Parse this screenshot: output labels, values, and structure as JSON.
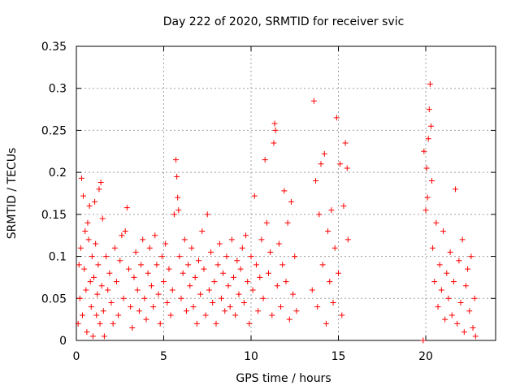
{
  "chart_data": {
    "type": "scatter",
    "title": "Day 222 of 2020, SRMTID for receiver svic",
    "xlabel": "GPS time / hours",
    "ylabel": "SRMTID / TECUs",
    "xlim": [
      0,
      24
    ],
    "ylim": [
      0,
      0.35
    ],
    "xticks": [
      0,
      5,
      10,
      15,
      20
    ],
    "xtick_labels": [
      "0",
      "5",
      "10",
      "15",
      "20"
    ],
    "yticks": [
      0,
      0.05,
      0.1,
      0.15,
      0.2,
      0.25,
      0.3,
      0.35
    ],
    "ytick_labels": [
      "0",
      "0.05",
      "0.1",
      "0.15",
      "0.2",
      "0.25",
      "0.3",
      "0.35"
    ],
    "grid": true,
    "marker": "+",
    "color": "#ff0000",
    "series": [
      {
        "points": [
          [
            0.1,
            0.02
          ],
          [
            0.15,
            0.09
          ],
          [
            0.2,
            0.05
          ],
          [
            0.25,
            0.11
          ],
          [
            0.3,
            0.193
          ],
          [
            0.35,
            0.03
          ],
          [
            0.4,
            0.172
          ],
          [
            0.45,
            0.085
          ],
          [
            0.5,
            0.13
          ],
          [
            0.55,
            0.06
          ],
          [
            0.6,
            0.01
          ],
          [
            0.65,
            0.14
          ],
          [
            0.7,
            0.12
          ],
          [
            0.75,
            0.16
          ],
          [
            0.8,
            0.07
          ],
          [
            0.85,
            0.04
          ],
          [
            0.9,
            0.1
          ],
          [
            0.95,
            0.005
          ],
          [
            1.0,
            0.075
          ],
          [
            1.05,
            0.165
          ],
          [
            1.1,
            0.115
          ],
          [
            1.15,
            0.03
          ],
          [
            1.2,
            0.055
          ],
          [
            1.25,
            0.09
          ],
          [
            1.3,
            0.18
          ],
          [
            1.35,
            0.02
          ],
          [
            1.4,
            0.188
          ],
          [
            1.45,
            0.065
          ],
          [
            1.5,
            0.145
          ],
          [
            1.55,
            0.035
          ],
          [
            1.6,
            0.005
          ],
          [
            1.7,
            0.1
          ],
          [
            1.8,
            0.06
          ],
          [
            1.9,
            0.08
          ],
          [
            2.0,
            0.045
          ],
          [
            2.1,
            0.02
          ],
          [
            2.2,
            0.11
          ],
          [
            2.3,
            0.07
          ],
          [
            2.4,
            0.03
          ],
          [
            2.5,
            0.095
          ],
          [
            2.6,
            0.125
          ],
          [
            2.7,
            0.05
          ],
          [
            2.8,
            0.13
          ],
          [
            2.9,
            0.158
          ],
          [
            3.0,
            0.085
          ],
          [
            3.1,
            0.04
          ],
          [
            3.2,
            0.015
          ],
          [
            3.3,
            0.075
          ],
          [
            3.4,
            0.105
          ],
          [
            3.5,
            0.06
          ],
          [
            3.6,
            0.035
          ],
          [
            3.7,
            0.09
          ],
          [
            3.8,
            0.12
          ],
          [
            3.9,
            0.05
          ],
          [
            4.0,
            0.025
          ],
          [
            4.1,
            0.08
          ],
          [
            4.2,
            0.11
          ],
          [
            4.3,
            0.065
          ],
          [
            4.4,
            0.04
          ],
          [
            4.5,
            0.125
          ],
          [
            4.6,
            0.09
          ],
          [
            4.7,
            0.055
          ],
          [
            4.8,
            0.02
          ],
          [
            4.9,
            0.1
          ],
          [
            5.0,
            0.07
          ],
          [
            5.1,
            0.115
          ],
          [
            5.2,
            0.045
          ],
          [
            5.3,
            0.085
          ],
          [
            5.4,
            0.03
          ],
          [
            5.5,
            0.06
          ],
          [
            5.6,
            0.15
          ],
          [
            5.7,
            0.215
          ],
          [
            5.75,
            0.195
          ],
          [
            5.8,
            0.17
          ],
          [
            5.85,
            0.155
          ],
          [
            5.9,
            0.1
          ],
          [
            6.0,
            0.05
          ],
          [
            6.1,
            0.08
          ],
          [
            6.2,
            0.12
          ],
          [
            6.3,
            0.035
          ],
          [
            6.4,
            0.09
          ],
          [
            6.5,
            0.065
          ],
          [
            6.6,
            0.11
          ],
          [
            6.7,
            0.04
          ],
          [
            6.8,
            0.075
          ],
          [
            6.9,
            0.02
          ],
          [
            7.0,
            0.095
          ],
          [
            7.1,
            0.055
          ],
          [
            7.2,
            0.13
          ],
          [
            7.3,
            0.085
          ],
          [
            7.4,
            0.03
          ],
          [
            7.5,
            0.15
          ],
          [
            7.6,
            0.06
          ],
          [
            7.7,
            0.105
          ],
          [
            7.8,
            0.045
          ],
          [
            7.9,
            0.07
          ],
          [
            8.0,
            0.02
          ],
          [
            8.1,
            0.09
          ],
          [
            8.2,
            0.115
          ],
          [
            8.3,
            0.05
          ],
          [
            8.4,
            0.08
          ],
          [
            8.5,
            0.035
          ],
          [
            8.6,
            0.1
          ],
          [
            8.7,
            0.065
          ],
          [
            8.8,
            0.04
          ],
          [
            8.9,
            0.12
          ],
          [
            9.0,
            0.075
          ],
          [
            9.1,
            0.03
          ],
          [
            9.2,
            0.095
          ],
          [
            9.3,
            0.055
          ],
          [
            9.4,
            0.085
          ],
          [
            9.5,
            0.11
          ],
          [
            9.6,
            0.045
          ],
          [
            9.7,
            0.125
          ],
          [
            9.8,
            0.07
          ],
          [
            9.9,
            0.02
          ],
          [
            10.0,
            0.1
          ],
          [
            10.1,
            0.06
          ],
          [
            10.2,
            0.172
          ],
          [
            10.3,
            0.09
          ],
          [
            10.4,
            0.035
          ],
          [
            10.5,
            0.075
          ],
          [
            10.6,
            0.12
          ],
          [
            10.7,
            0.05
          ],
          [
            10.8,
            0.215
          ],
          [
            10.9,
            0.14
          ],
          [
            11.0,
            0.08
          ],
          [
            11.1,
            0.105
          ],
          [
            11.2,
            0.03
          ],
          [
            11.3,
            0.235
          ],
          [
            11.35,
            0.258
          ],
          [
            11.4,
            0.25
          ],
          [
            11.5,
            0.065
          ],
          [
            11.6,
            0.115
          ],
          [
            11.7,
            0.04
          ],
          [
            11.8,
            0.09
          ],
          [
            11.9,
            0.178
          ],
          [
            12.0,
            0.07
          ],
          [
            12.1,
            0.14
          ],
          [
            12.2,
            0.025
          ],
          [
            12.3,
            0.165
          ],
          [
            12.4,
            0.055
          ],
          [
            12.5,
            0.1
          ],
          [
            12.6,
            0.035
          ],
          [
            13.5,
            0.06
          ],
          [
            13.6,
            0.285
          ],
          [
            13.7,
            0.19
          ],
          [
            13.8,
            0.04
          ],
          [
            13.9,
            0.15
          ],
          [
            14.0,
            0.21
          ],
          [
            14.1,
            0.09
          ],
          [
            14.2,
            0.222
          ],
          [
            14.3,
            0.02
          ],
          [
            14.4,
            0.13
          ],
          [
            14.5,
            0.07
          ],
          [
            14.6,
            0.155
          ],
          [
            14.7,
            0.045
          ],
          [
            14.8,
            0.11
          ],
          [
            14.9,
            0.265
          ],
          [
            15.0,
            0.08
          ],
          [
            15.1,
            0.21
          ],
          [
            15.2,
            0.03
          ],
          [
            15.3,
            0.16
          ],
          [
            15.4,
            0.235
          ],
          [
            15.5,
            0.205
          ],
          [
            15.55,
            0.12
          ],
          [
            19.85,
            0.0
          ],
          [
            19.9,
            0.225
          ],
          [
            20.0,
            0.155
          ],
          [
            20.05,
            0.205
          ],
          [
            20.1,
            0.17
          ],
          [
            20.15,
            0.24
          ],
          [
            20.2,
            0.275
          ],
          [
            20.25,
            0.305
          ],
          [
            20.3,
            0.255
          ],
          [
            20.35,
            0.19
          ],
          [
            20.4,
            0.11
          ],
          [
            20.5,
            0.07
          ],
          [
            20.6,
            0.14
          ],
          [
            20.7,
            0.04
          ],
          [
            20.8,
            0.09
          ],
          [
            20.9,
            0.06
          ],
          [
            21.0,
            0.13
          ],
          [
            21.1,
            0.025
          ],
          [
            21.2,
            0.08
          ],
          [
            21.3,
            0.05
          ],
          [
            21.4,
            0.105
          ],
          [
            21.5,
            0.03
          ],
          [
            21.6,
            0.07
          ],
          [
            21.7,
            0.18
          ],
          [
            21.8,
            0.02
          ],
          [
            21.9,
            0.095
          ],
          [
            22.0,
            0.045
          ],
          [
            22.1,
            0.12
          ],
          [
            22.2,
            0.01
          ],
          [
            22.3,
            0.065
          ],
          [
            22.4,
            0.085
          ],
          [
            22.5,
            0.035
          ],
          [
            22.6,
            0.1
          ],
          [
            22.7,
            0.015
          ],
          [
            22.8,
            0.05
          ],
          [
            22.85,
            0.005
          ]
        ]
      }
    ]
  }
}
